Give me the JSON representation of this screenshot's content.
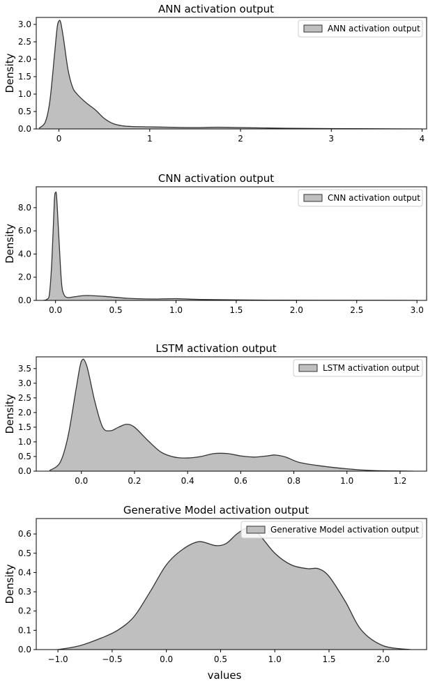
{
  "figure": {
    "fill_color": "#bfbfbf",
    "line_color": "#333333",
    "xlabel": "values"
  },
  "chart_data": [
    {
      "type": "area",
      "title": "ANN activation output",
      "ylabel": "Density",
      "legend": "ANN activation output",
      "legend_position": "top-right",
      "xlim": [
        -0.25,
        4.05
      ],
      "ylim": [
        0,
        3.2
      ],
      "xticks": [
        0,
        1,
        2,
        3,
        4
      ],
      "xtick_labels": [
        "0",
        "1",
        "2",
        "3",
        "4"
      ],
      "yticks": [
        0,
        0.5,
        1.0,
        1.5,
        2.0,
        2.5,
        3.0
      ],
      "ytick_labels": [
        "0.0",
        "0.5",
        "1.0",
        "1.5",
        "2.0",
        "2.5",
        "3.0"
      ],
      "x": [
        -0.22,
        -0.15,
        -0.1,
        -0.05,
        -0.02,
        0.0,
        0.02,
        0.05,
        0.1,
        0.15,
        0.2,
        0.3,
        0.4,
        0.5,
        0.6,
        0.7,
        0.8,
        1.0,
        1.2,
        1.5,
        1.75,
        2.0,
        2.5,
        3.0,
        3.5,
        4.0
      ],
      "y": [
        0.02,
        0.2,
        0.8,
        2.1,
        2.9,
        3.1,
        3.05,
        2.6,
        1.7,
        1.2,
        1.0,
        0.75,
        0.55,
        0.3,
        0.15,
        0.09,
        0.07,
        0.06,
        0.05,
        0.04,
        0.05,
        0.04,
        0.02,
        0.01,
        0.005,
        0.0
      ]
    },
    {
      "type": "area",
      "title": "CNN activation output",
      "ylabel": "Density",
      "legend": "CNN activation output",
      "legend_position": "top-right",
      "xlim": [
        -0.16,
        3.08
      ],
      "ylim": [
        0,
        9.8
      ],
      "xticks": [
        0.0,
        0.5,
        1.0,
        1.5,
        2.0,
        2.5,
        3.0
      ],
      "xtick_labels": [
        "0.0",
        "0.5",
        "1.0",
        "1.5",
        "2.0",
        "2.5",
        "3.0"
      ],
      "yticks": [
        0,
        2.0,
        4.0,
        6.0,
        8.0
      ],
      "ytick_labels": [
        "0.0",
        "2.0",
        "4.0",
        "6.0",
        "8.0"
      ],
      "x": [
        -0.1,
        -0.07,
        -0.05,
        -0.03,
        -0.01,
        0.0,
        0.01,
        0.03,
        0.05,
        0.07,
        0.1,
        0.15,
        0.25,
        0.4,
        0.6,
        0.8,
        1.0,
        1.2,
        1.5,
        2.0,
        2.5,
        3.0
      ],
      "y": [
        0.0,
        0.1,
        0.6,
        3.5,
        8.5,
        9.3,
        8.8,
        5.0,
        1.5,
        0.5,
        0.25,
        0.3,
        0.42,
        0.35,
        0.18,
        0.12,
        0.15,
        0.08,
        0.04,
        0.01,
        0.005,
        0.0
      ]
    },
    {
      "type": "area",
      "title": "LSTM activation output",
      "ylabel": "Density",
      "legend": "LSTM activation output",
      "legend_position": "top-right",
      "xlim": [
        -0.17,
        1.3
      ],
      "ylim": [
        0,
        3.9
      ],
      "xticks": [
        0.0,
        0.2,
        0.4,
        0.6,
        0.8,
        1.0,
        1.2
      ],
      "xtick_labels": [
        "0.0",
        "0.2",
        "0.4",
        "0.6",
        "0.8",
        "1.0",
        "1.2"
      ],
      "yticks": [
        0,
        0.5,
        1.0,
        1.5,
        2.0,
        2.5,
        3.0,
        3.5
      ],
      "ytick_labels": [
        "0.0",
        "0.5",
        "1.0",
        "1.5",
        "2.0",
        "2.5",
        "3.0",
        "3.5"
      ],
      "x": [
        -0.12,
        -0.08,
        -0.05,
        -0.02,
        0.0,
        0.02,
        0.05,
        0.08,
        0.11,
        0.14,
        0.17,
        0.2,
        0.25,
        0.3,
        0.35,
        0.4,
        0.45,
        0.5,
        0.55,
        0.6,
        0.65,
        0.7,
        0.73,
        0.77,
        0.82,
        0.9,
        1.0,
        1.1,
        1.25
      ],
      "y": [
        0.02,
        0.3,
        1.2,
        2.8,
        3.75,
        3.6,
        2.4,
        1.5,
        1.38,
        1.5,
        1.6,
        1.5,
        1.05,
        0.65,
        0.48,
        0.45,
        0.5,
        0.6,
        0.6,
        0.52,
        0.48,
        0.52,
        0.55,
        0.48,
        0.3,
        0.18,
        0.08,
        0.02,
        0.0
      ]
    },
    {
      "type": "area",
      "title": "Generative Model activation output",
      "ylabel": "Density",
      "xlabel": "values",
      "legend": "Generative Model activation output",
      "legend_position": "top-right",
      "xlim": [
        -1.2,
        2.4
      ],
      "ylim": [
        0,
        0.68
      ],
      "xticks": [
        -1.0,
        -0.5,
        0.0,
        0.5,
        1.0,
        1.5,
        2.0
      ],
      "xtick_labels": [
        "−1.0",
        "−0.5",
        "0.0",
        "0.5",
        "1.0",
        "1.5",
        "2.0"
      ],
      "yticks": [
        0,
        0.1,
        0.2,
        0.3,
        0.4,
        0.5,
        0.6
      ],
      "ytick_labels": [
        "0.0",
        "0.1",
        "0.2",
        "0.3",
        "0.4",
        "0.5",
        "0.6"
      ],
      "x": [
        -1.0,
        -0.8,
        -0.6,
        -0.45,
        -0.3,
        -0.15,
        0.0,
        0.15,
        0.3,
        0.45,
        0.55,
        0.65,
        0.75,
        0.85,
        1.0,
        1.15,
        1.3,
        1.4,
        1.5,
        1.65,
        1.8,
        2.0,
        2.25
      ],
      "y": [
        0.0,
        0.02,
        0.06,
        0.1,
        0.17,
        0.3,
        0.44,
        0.52,
        0.56,
        0.54,
        0.55,
        0.6,
        0.63,
        0.6,
        0.5,
        0.44,
        0.42,
        0.42,
        0.38,
        0.25,
        0.1,
        0.02,
        0.0
      ]
    }
  ]
}
